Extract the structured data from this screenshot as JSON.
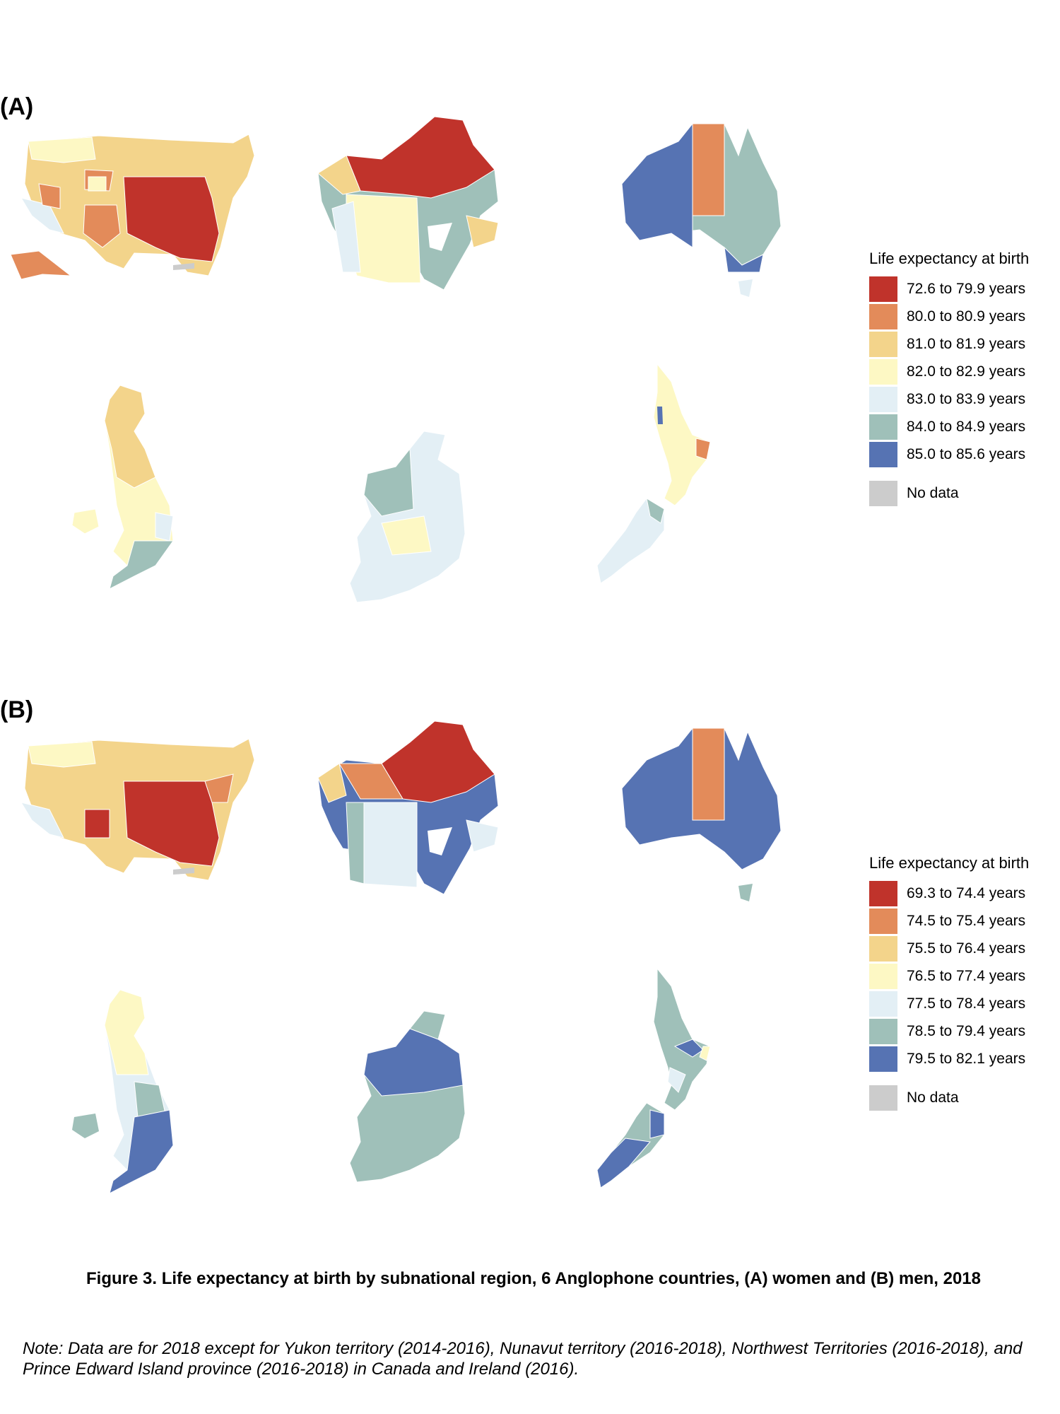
{
  "panels": [
    {
      "label": "(A)",
      "legend_title": "Life expectancy at birth",
      "legend": [
        {
          "range": "72.6 to 79.9 years",
          "color": "#c0332b"
        },
        {
          "range": "80.0 to 80.9 years",
          "color": "#e38b5a"
        },
        {
          "range": "81.0 to 81.9 years",
          "color": "#f3d48b"
        },
        {
          "range": "82.0 to 82.9 years",
          "color": "#fdf8c4"
        },
        {
          "range": "83.0 to 83.9 years",
          "color": "#e3eff5"
        },
        {
          "range": "84.0 to 84.9 years",
          "color": "#9fc0b9"
        },
        {
          "range": "85.0 to 85.6 years",
          "color": "#5673b3"
        }
      ],
      "no_data": {
        "label": "No data",
        "color": "#cccccc"
      }
    },
    {
      "label": "(B)",
      "legend_title": "Life expectancy at birth",
      "legend": [
        {
          "range": "69.3 to 74.4 years",
          "color": "#c0332b"
        },
        {
          "range": "74.5 to 75.4 years",
          "color": "#e38b5a"
        },
        {
          "range": "75.5 to 76.4 years",
          "color": "#f3d48b"
        },
        {
          "range": "76.5 to 77.4 years",
          "color": "#fdf8c4"
        },
        {
          "range": "77.5 to 78.4 years",
          "color": "#e3eff5"
        },
        {
          "range": "78.5 to 79.4 years",
          "color": "#9fc0b9"
        },
        {
          "range": "79.5 to 82.1 years",
          "color": "#5673b3"
        }
      ],
      "no_data": {
        "label": "No data",
        "color": "#cccccc"
      }
    }
  ],
  "caption": "Figure 3. Life expectancy at birth by subnational region, 6 Anglophone countries, (A) women and (B) men, 2018",
  "note": "Note: Data are for 2018 except for Yukon territory (2014-2016), Nunavut territory (2016-2018), Northwest Territories (2016-2018), and Prince Edward Island province (2016-2018) in Canada and Ireland (2016)."
}
